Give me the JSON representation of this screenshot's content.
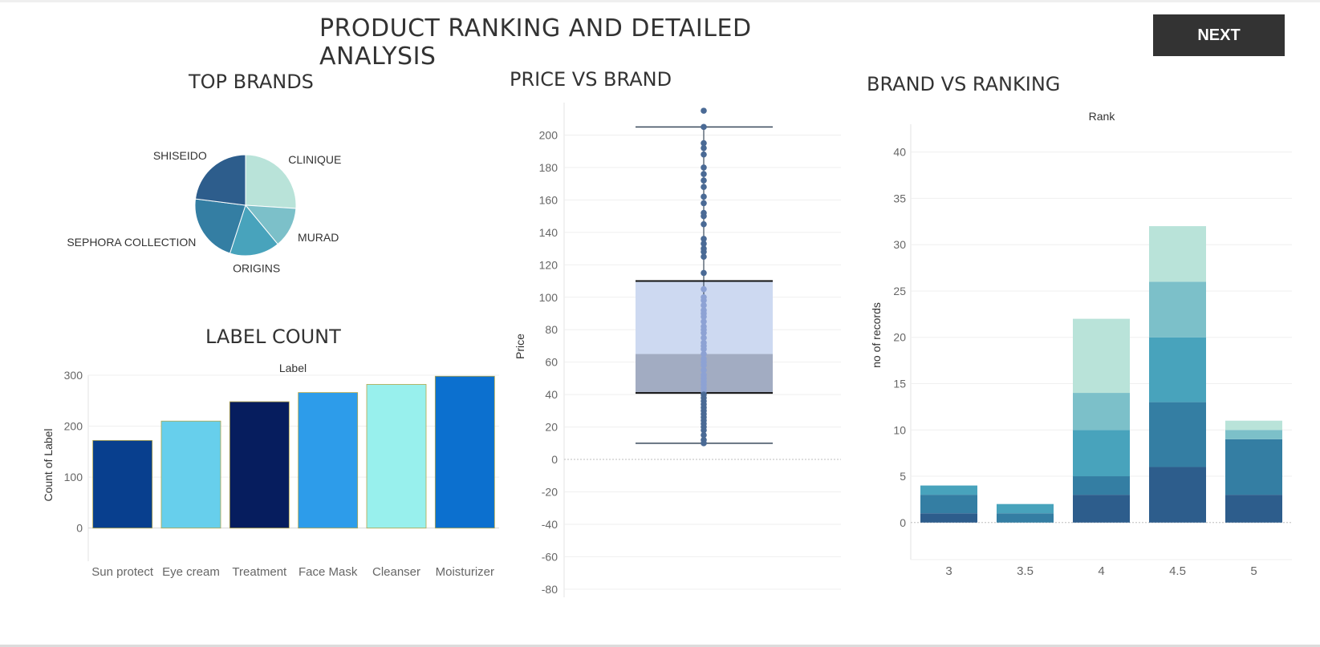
{
  "header": {
    "title": "PRODUCT RANKING AND DETAILED ANALYSIS",
    "next_label": "NEXT"
  },
  "sections": {
    "top_brands": "TOP BRANDS",
    "label_count": "LABEL COUNT",
    "price_vs_brand": "PRICE VS BRAND",
    "brand_vs_ranking": "BRAND VS RANKING"
  },
  "colors": {
    "accent_dark": "#333333"
  },
  "chart_data": [
    {
      "type": "pie",
      "title": "TOP BRANDS",
      "slices": [
        {
          "label": "CLINIQUE",
          "value": 26,
          "color": "#b9e3d9"
        },
        {
          "label": "MURAD",
          "value": 13,
          "color": "#7cc0c9"
        },
        {
          "label": "ORIGINS",
          "value": 16,
          "color": "#48a3bc"
        },
        {
          "label": "SEPHORA COLLECTION",
          "value": 22,
          "color": "#347ea3"
        },
        {
          "label": "SHISEIDO",
          "value": 23,
          "color": "#2d5d8c"
        }
      ]
    },
    {
      "type": "bar",
      "title": "LABEL COUNT",
      "xlabel": "Label",
      "ylabel": "Count of Label",
      "categories": [
        "Sun protect",
        "Eye cream",
        "Treatment",
        "Face Mask",
        "Cleanser",
        "Moisturizer"
      ],
      "values": [
        172,
        210,
        248,
        266,
        282,
        298
      ],
      "colors": [
        "#083f8e",
        "#67cfec",
        "#061d5e",
        "#2d9cea",
        "#98f0ed",
        "#0c70cf"
      ],
      "yticks": [
        0,
        100,
        200,
        300
      ],
      "ylim": [
        -65,
        300
      ]
    },
    {
      "type": "scatter",
      "subtype": "boxplot",
      "title": "PRICE VS BRAND",
      "ylabel": "Price",
      "yticks": [
        -80,
        -60,
        -40,
        -20,
        0,
        20,
        40,
        60,
        80,
        100,
        120,
        140,
        160,
        180,
        200
      ],
      "ylim": [
        -85,
        220
      ],
      "box": {
        "whisker_low": 10,
        "q1": 41,
        "median": 65,
        "q3": 110,
        "whisker_high": 205
      },
      "points": [
        215,
        205,
        195,
        192,
        188,
        180,
        176,
        172,
        168,
        162,
        158,
        152,
        150,
        145,
        136,
        133,
        130,
        128,
        125,
        115,
        105,
        100,
        98,
        95,
        92,
        90,
        88,
        85,
        82,
        80,
        78,
        75,
        72,
        70,
        68,
        65,
        62,
        60,
        58,
        55,
        52,
        50,
        48,
        46,
        44,
        42,
        40,
        38,
        36,
        34,
        32,
        30,
        28,
        26,
        24,
        22,
        20,
        18,
        15,
        12,
        10
      ]
    },
    {
      "type": "bar",
      "subtype": "stacked",
      "title": "BRAND VS RANKING",
      "xlabel": "Rank",
      "ylabel": "no of records",
      "categories": [
        "3",
        "3.5",
        "4",
        "4.5",
        "5"
      ],
      "yticks": [
        0,
        5,
        10,
        15,
        20,
        25,
        30,
        35,
        40
      ],
      "ylim": [
        -4,
        43
      ],
      "series": [
        {
          "values": [
            1,
            0,
            3,
            6,
            3
          ],
          "color": "#2d5d8c"
        },
        {
          "values": [
            2,
            1,
            2,
            7,
            6
          ],
          "color": "#347ea3"
        },
        {
          "values": [
            1,
            1,
            5,
            7,
            0
          ],
          "color": "#48a3bc"
        },
        {
          "values": [
            0,
            0,
            4,
            6,
            1
          ],
          "color": "#7cc0c9"
        },
        {
          "values": [
            0,
            0,
            8,
            6,
            1
          ],
          "color": "#b9e3d9"
        }
      ]
    }
  ]
}
